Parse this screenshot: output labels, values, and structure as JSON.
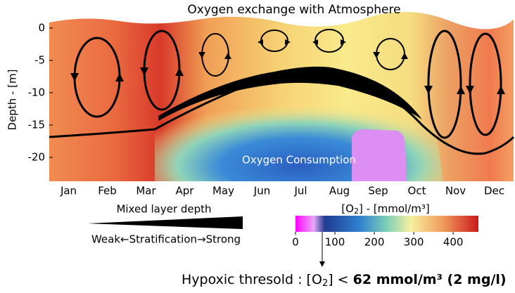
{
  "title": "Oxygen exchange with Atmosphere",
  "y_axis": {
    "label": "Depth - [m]",
    "ylim": [
      -23.7,
      1.3
    ],
    "yticks": [
      0,
      -5,
      -10,
      -15,
      -20
    ]
  },
  "months": [
    "Jan",
    "Feb",
    "Mar",
    "Apr",
    "May",
    "Jun",
    "Jul",
    "Aug",
    "Sep",
    "Oct",
    "Nov",
    "Dec"
  ],
  "annotation": "Oxygen Consumption",
  "legend": {
    "mixed_layer": "Mixed layer depth",
    "stratification": "Weak←Stratification→Strong"
  },
  "colorbar": {
    "label_start": "[O",
    "label_sub": "2",
    "label_end": "] - [mmol/m³]",
    "lim": [
      0,
      464
    ],
    "ticks": [
      0,
      100,
      200,
      300,
      400
    ]
  },
  "note": {
    "prefix": "Hypoxic thresold : [O",
    "sub": "2",
    "mid": "] < ",
    "bold": "62 mmol/m³ (2 mg/l)"
  }
}
